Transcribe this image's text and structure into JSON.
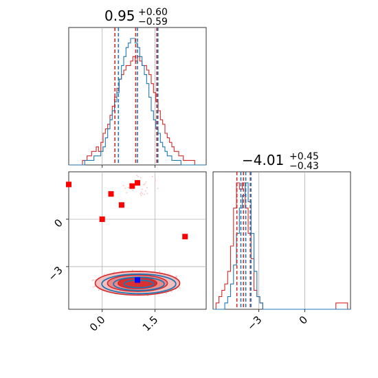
{
  "chart_data": {
    "type": "corner",
    "colors": {
      "red": "#d62728",
      "blue": "#1f77b4",
      "grid": "#b0b0b0",
      "marker_red": "#ff0000",
      "marker_blue": "#0000ff",
      "fill_red": "#e88484",
      "scatter": "#f5c9c9"
    },
    "param1": {
      "title": {
        "main": "0.95",
        "sup": "+0.60",
        "sub": "−0.59"
      },
      "range": [
        -0.95,
        2.95
      ],
      "ticks": [
        {
          "value": 0.0,
          "label": "0.0"
        },
        {
          "value": 1.5,
          "label": "1.5"
        }
      ],
      "gridlines": [
        0.0,
        1.5
      ],
      "quantiles_red": [
        0.36,
        0.95,
        1.55
      ],
      "quantiles_blue": [
        0.46,
        1.0,
        1.58
      ]
    },
    "param2": {
      "title": {
        "main": "−4.01",
        "sup": "+0.45",
        "sub": "−0.43"
      },
      "range": [
        -6.0,
        3.0
      ],
      "ticks": [
        {
          "value": -3,
          "label": "−3"
        },
        {
          "value": 0,
          "label": "0"
        }
      ],
      "gridlines": [
        -3,
        0
      ],
      "quantiles_red": [
        -4.44,
        -4.01,
        -3.56
      ],
      "quantiles_blue": [
        -4.18,
        -3.86,
        -3.52
      ]
    },
    "hist1_red": {
      "x0": -0.95,
      "x1": 2.95,
      "counts": [
        0,
        0,
        0,
        0,
        0,
        0,
        1,
        1,
        2,
        2,
        3,
        3,
        4,
        3,
        5,
        7,
        8,
        9,
        11,
        13,
        15,
        17,
        19,
        20,
        21,
        22,
        22,
        23,
        24,
        23,
        24,
        23,
        22,
        22,
        21,
        20,
        18,
        16,
        14,
        12,
        10,
        9,
        7,
        6,
        5,
        4,
        3,
        3,
        2,
        2,
        1,
        1,
        1,
        1,
        1,
        0,
        0,
        0,
        0,
        0
      ]
    },
    "hist1_blue": {
      "x0": -0.95,
      "x1": 2.95,
      "counts": [
        0,
        0,
        0,
        0,
        0,
        0,
        0,
        1,
        1,
        1,
        1,
        2,
        2,
        2,
        3,
        4,
        6,
        8,
        10,
        12,
        14,
        16,
        19,
        22,
        24,
        26,
        27,
        28,
        28,
        27,
        26,
        24,
        22,
        20,
        18,
        15,
        12,
        10,
        8,
        7,
        5,
        4,
        3,
        2,
        2,
        1,
        1,
        1,
        1,
        0,
        0,
        0,
        0,
        0,
        0,
        0,
        0,
        0,
        0,
        0
      ]
    },
    "hist2_red": {
      "x0": -6.0,
      "x1": 3.0,
      "counts": [
        0,
        1,
        2,
        3,
        4,
        6,
        10,
        16,
        20,
        19,
        20,
        16,
        12,
        8,
        3,
        2,
        1,
        0,
        0,
        0,
        0,
        0,
        0,
        0,
        0,
        0,
        0,
        0,
        0,
        0,
        0,
        0,
        0,
        0,
        0,
        0,
        0,
        0,
        0,
        0,
        0,
        0,
        1,
        1,
        1,
        1,
        0
      ]
    },
    "hist2_blue": {
      "x0": -6.0,
      "x1": 3.0,
      "counts": [
        0,
        0,
        0,
        0,
        1,
        2,
        4,
        7,
        12,
        16,
        18,
        20,
        17,
        12,
        6,
        2,
        1,
        0,
        0,
        0,
        0,
        0,
        0,
        0,
        0,
        0,
        0,
        0,
        0,
        0,
        0,
        0,
        0,
        0,
        0,
        0,
        0,
        0,
        0,
        0,
        0,
        0,
        0,
        0,
        0,
        0,
        0
      ]
    },
    "joint": {
      "center": [
        1.0,
        -4.05
      ],
      "red_contours": [
        {
          "rx": 1.2,
          "ry": 0.75
        },
        {
          "rx": 0.85,
          "ry": 0.52
        },
        {
          "rx": 0.55,
          "ry": 0.34
        }
      ],
      "blue_contours": [
        {
          "rx": 1.05,
          "ry": 0.62
        },
        {
          "rx": 0.72,
          "ry": 0.42
        },
        {
          "rx": 0.42,
          "ry": 0.24
        }
      ],
      "red_markers": [
        {
          "x": -0.95,
          "y": 2.2
        },
        {
          "x": 0.25,
          "y": 1.6
        },
        {
          "x": 0.55,
          "y": 0.9
        },
        {
          "x": 0.85,
          "y": 2.1
        },
        {
          "x": 1.0,
          "y": 2.3
        },
        {
          "x": 0.0,
          "y": 0.0
        },
        {
          "x": 2.35,
          "y": -1.1
        },
        {
          "x": 1.0,
          "y": -3.85
        }
      ],
      "blue_marker": {
        "x": 1.0,
        "y": -3.85
      },
      "y_range": [
        -5.7,
        3.0
      ],
      "y_ticks": [
        {
          "value": 0,
          "label": "0"
        },
        {
          "value": -3,
          "label": "−3"
        }
      ],
      "y_gridlines": [
        0,
        -3
      ]
    }
  }
}
